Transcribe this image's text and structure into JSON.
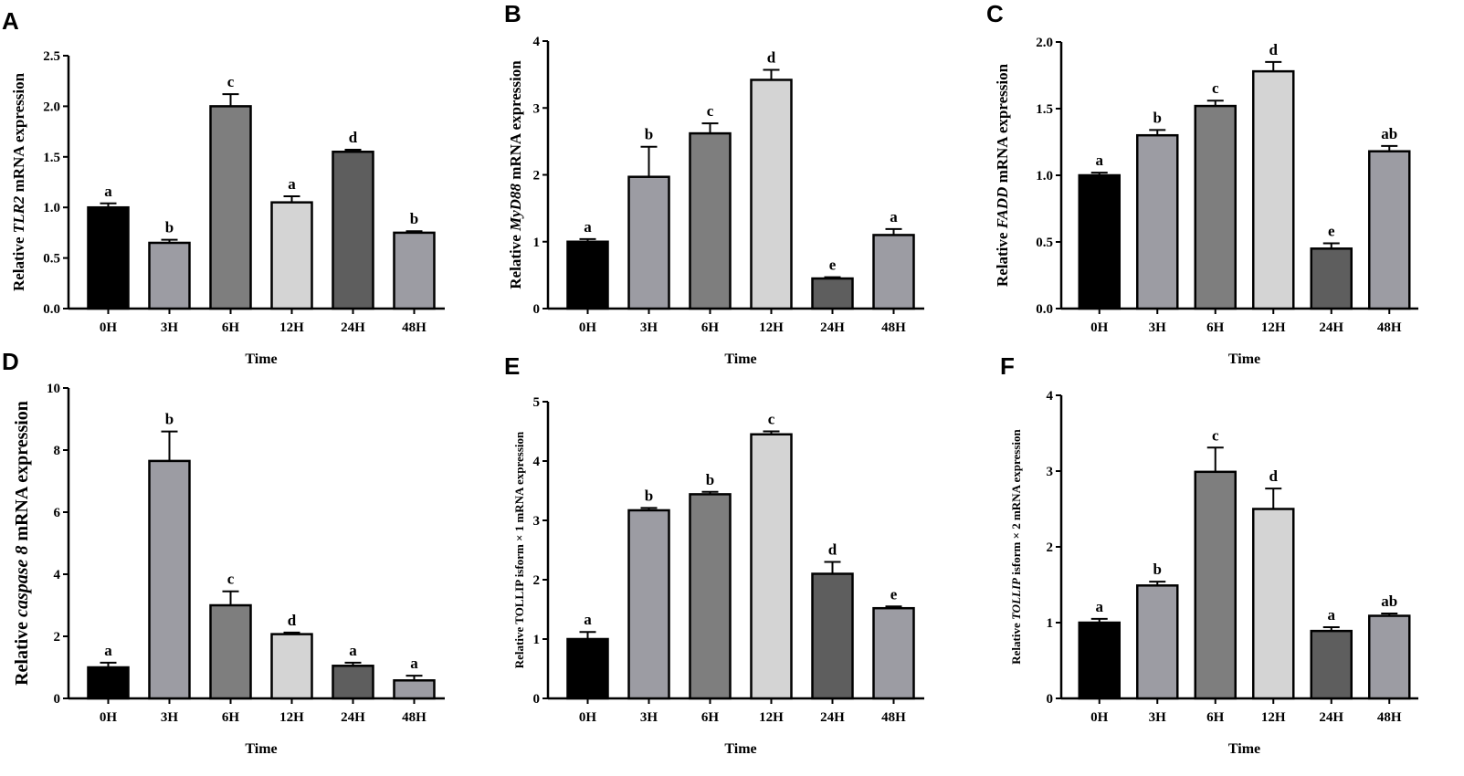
{
  "colors": {
    "0H": "#000000",
    "3H": "#9c9ca3",
    "6H": "#7e7e7e",
    "12H": "#d4d4d4",
    "24H": "#5e5e5e",
    "48H": "#9c9ca3",
    "axis": "#000000"
  },
  "chart_data": [
    {
      "type": "bar",
      "panel": "A",
      "title": "",
      "xlabel": "Time",
      "ylabel": {
        "prefix": "Relative ",
        "gene": "TLR2",
        "suffix": " mRNA expression"
      },
      "categories": [
        "0H",
        "3H",
        "6H",
        "12H",
        "24H",
        "48H"
      ],
      "values": [
        1.0,
        0.65,
        2.0,
        1.05,
        1.55,
        0.75
      ],
      "errors": [
        0.04,
        0.03,
        0.12,
        0.06,
        0.02,
        0.015
      ],
      "letters": [
        "a",
        "b",
        "c",
        "a",
        "d",
        "b"
      ],
      "ylim": [
        0,
        2.5
      ],
      "yticks": [
        "0.0",
        "0.5",
        "1.0",
        "1.5",
        "2.0",
        "2.5"
      ],
      "grid": false
    },
    {
      "type": "bar",
      "panel": "B",
      "title": "",
      "xlabel": "Time",
      "ylabel": {
        "prefix": "Relative ",
        "gene": "MyD88",
        "suffix": " mRNA expression"
      },
      "categories": [
        "0H",
        "3H",
        "6H",
        "12H",
        "24H",
        "48H"
      ],
      "values": [
        1.0,
        1.97,
        2.62,
        3.42,
        0.45,
        1.1
      ],
      "errors": [
        0.04,
        0.45,
        0.15,
        0.15,
        0.02,
        0.09
      ],
      "letters": [
        "a",
        "b",
        "c",
        "d",
        "e",
        "a"
      ],
      "ylim": [
        0,
        4
      ],
      "yticks": [
        "0",
        "1",
        "2",
        "3",
        "4"
      ],
      "grid": false
    },
    {
      "type": "bar",
      "panel": "C",
      "title": "",
      "xlabel": "Time",
      "ylabel": {
        "prefix": "Relative ",
        "gene": "FADD",
        "suffix": " mRNA expression"
      },
      "categories": [
        "0H",
        "3H",
        "6H",
        "12H",
        "24H",
        "48H"
      ],
      "values": [
        1.0,
        1.3,
        1.52,
        1.78,
        0.45,
        1.18
      ],
      "errors": [
        0.02,
        0.04,
        0.04,
        0.07,
        0.04,
        0.04
      ],
      "letters": [
        "a",
        "b",
        "c",
        "d",
        "e",
        "ab"
      ],
      "ylim": [
        0,
        2.0
      ],
      "yticks": [
        "0.0",
        "0.5",
        "1.0",
        "1.5",
        "2.0"
      ],
      "grid": false
    },
    {
      "type": "bar",
      "panel": "D",
      "title": "",
      "xlabel": "Time",
      "ylabel": {
        "prefix": "Relative ",
        "gene": "caspase 8",
        "suffix": " mRNA expression"
      },
      "categories": [
        "0H",
        "3H",
        "6H",
        "12H",
        "24H",
        "48H"
      ],
      "values": [
        1.0,
        7.65,
        3.0,
        2.07,
        1.05,
        0.58
      ],
      "errors": [
        0.15,
        0.95,
        0.45,
        0.05,
        0.1,
        0.15
      ],
      "letters": [
        "a",
        "b",
        "c",
        "d",
        "a",
        "a"
      ],
      "ylim": [
        0,
        10
      ],
      "yticks": [
        "0",
        "2",
        "4",
        "6",
        "8",
        "10"
      ],
      "grid": false
    },
    {
      "type": "bar",
      "panel": "E",
      "title": "",
      "xlabel": "Time",
      "ylabel": {
        "prefix": "Relative ",
        "gene": "",
        "suffix": "TOLLIP isform × 1 mRNA expression"
      },
      "categories": [
        "0H",
        "3H",
        "6H",
        "12H",
        "24H",
        "48H"
      ],
      "values": [
        1.0,
        3.17,
        3.44,
        4.45,
        2.1,
        1.52
      ],
      "errors": [
        0.12,
        0.04,
        0.04,
        0.05,
        0.2,
        0.03
      ],
      "letters": [
        "a",
        "b",
        "b",
        "c",
        "d",
        "e"
      ],
      "ylim": [
        0,
        5
      ],
      "yticks": [
        "0",
        "1",
        "2",
        "3",
        "4",
        "5"
      ],
      "grid": false
    },
    {
      "type": "bar",
      "panel": "F",
      "title": "",
      "xlabel": "Time",
      "ylabel": {
        "prefix": "Relative ",
        "gene": "TOLLIP",
        "suffix": " isform × 2 mRNA expression"
      },
      "categories": [
        "0H",
        "3H",
        "6H",
        "12H",
        "24H",
        "48H"
      ],
      "values": [
        1.0,
        1.49,
        2.99,
        2.5,
        0.89,
        1.09
      ],
      "errors": [
        0.05,
        0.05,
        0.32,
        0.27,
        0.05,
        0.03
      ],
      "letters": [
        "a",
        "b",
        "c",
        "d",
        "a",
        "ab"
      ],
      "ylim": [
        0,
        4
      ],
      "yticks": [
        "0",
        "1",
        "2",
        "3",
        "4"
      ],
      "grid": false
    }
  ]
}
